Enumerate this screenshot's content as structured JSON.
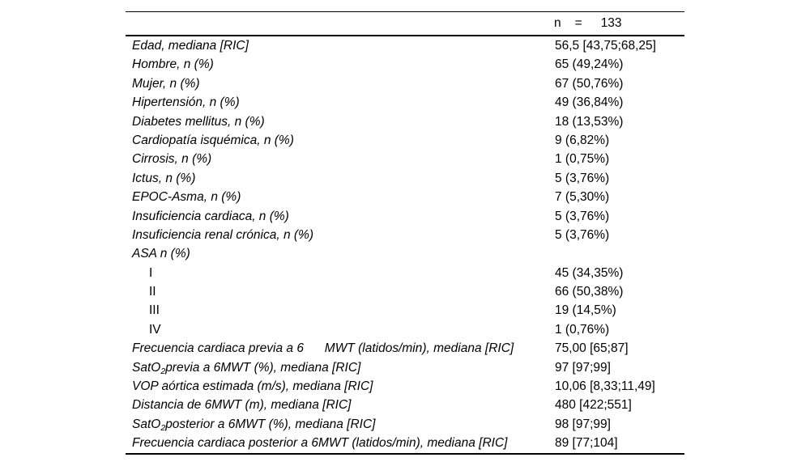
{
  "colors": {
    "background": "#ffffff",
    "text": "#000000",
    "rule": "#000000"
  },
  "table": {
    "header": {
      "n_label": "n",
      "equals": "=",
      "n_value": "133"
    },
    "rows": [
      {
        "label": "Edad, mediana [RIC]",
        "value": "56,5 [43,75;68,25]"
      },
      {
        "label": "Hombre, n (%)",
        "value": "65 (49,24%)"
      },
      {
        "label": "Mujer, n (%)",
        "value": "67 (50,76%)"
      },
      {
        "label": "Hipertensión, n (%)",
        "value": "49 (36,84%)"
      },
      {
        "label": "Diabetes mellitus, n (%)",
        "value": "18 (13,53%)"
      },
      {
        "label": "Cardiopatía isquémica, n (%)",
        "value": "9 (6,82%)"
      },
      {
        "label": "Cirrosis, n (%)",
        "value": "1 (0,75%)"
      },
      {
        "label": "Ictus, n (%)",
        "value": "5 (3,76%)"
      },
      {
        "label": "EPOC-Asma, n (%)",
        "value": "7 (5,30%)"
      },
      {
        "label": "Insuficiencia cardiaca, n (%)",
        "value": "5 (3,76%)"
      },
      {
        "label": "Insuficiencia renal crónica, n (%)",
        "value": "5 (3,76%)"
      },
      {
        "label": "ASA n (%)",
        "value": ""
      },
      {
        "label": "I",
        "value": "45 (34,35%)",
        "indent": true,
        "upright": true
      },
      {
        "label": "II",
        "value": "66 (50,38%)",
        "indent": true,
        "upright": true
      },
      {
        "label": "III",
        "value": "19 (14,5%)",
        "indent": true,
        "upright": true
      },
      {
        "label": "IV",
        "value": "1 (0,76%)",
        "indent": true,
        "upright": true
      },
      {
        "label": "Frecuencia cardiaca previa a 6      MWT (latidos/min), mediana [RIC]",
        "value": "75,00 [65;87]"
      },
      {
        "label_segments": [
          {
            "t": "SatO"
          },
          {
            "t": "2",
            "sub": true
          },
          {
            "t": "previa a 6MWT (%), mediana [RIC]"
          }
        ],
        "value": "97 [97;99]"
      },
      {
        "label": "VOP aórtica estimada (m/s), mediana [RIC]",
        "value": "10,06 [8,33;11,49]"
      },
      {
        "label": "Distancia de 6MWT (m), mediana [RIC]",
        "value": "480 [422;551]"
      },
      {
        "label_segments": [
          {
            "t": "SatO"
          },
          {
            "t": "2",
            "sub": true
          },
          {
            "t": "posterior a 6MWT (%), mediana [RIC]"
          }
        ],
        "value": "98 [97;99]"
      },
      {
        "label": "Frecuencia cardiaca posterior a 6MWT (latidos/min), mediana [RIC]",
        "value": "89 [77;104]"
      }
    ]
  }
}
